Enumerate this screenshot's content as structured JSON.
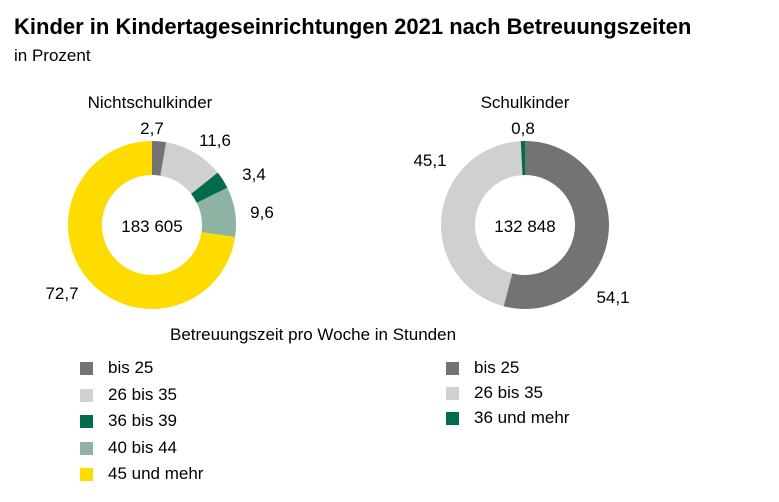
{
  "title": "Kinder in Kindertageseinrichtungen 2021 nach Betreuungszeiten",
  "subtitle": "in Prozent",
  "legend_title": "Betreuungszeit pro Woche in Stunden",
  "chart_data": [
    {
      "type": "pie",
      "donut": true,
      "title": "Nichtschulkinder",
      "center_label": "183 605",
      "categories": [
        "bis 25",
        "26 bis 35",
        "36 bis 39",
        "40 bis 44",
        "45 und mehr"
      ],
      "values": [
        2.7,
        11.6,
        3.4,
        9.6,
        72.7
      ],
      "value_labels": [
        "2,7",
        "11,6",
        "3,4",
        "9,6",
        "72,7"
      ],
      "colors": [
        "#737373",
        "#d0d0d0",
        "#006b4f",
        "#8fb3a3",
        "#ffdc00"
      ],
      "legend_placement": "bottom-left"
    },
    {
      "type": "pie",
      "donut": true,
      "title": "Schulkinder",
      "center_label": "132 848",
      "categories": [
        "bis 25",
        "26 bis 35",
        "36 und mehr"
      ],
      "values": [
        54.1,
        45.1,
        0.8
      ],
      "value_labels": [
        "54,1",
        "45,1",
        "0,8"
      ],
      "colors": [
        "#737373",
        "#d0d0d0",
        "#006b4f"
      ],
      "legend_placement": "bottom-right"
    }
  ]
}
